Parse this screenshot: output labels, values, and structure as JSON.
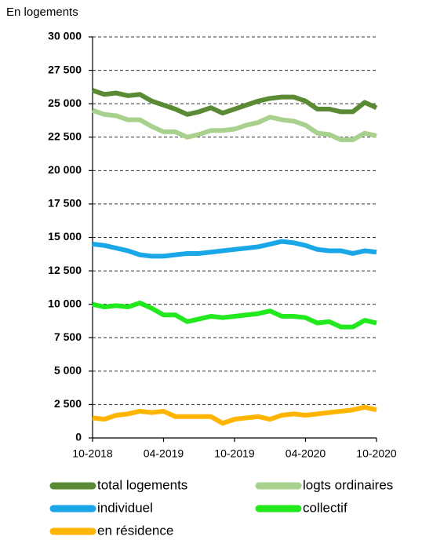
{
  "chart_data": {
    "type": "line",
    "y_axis_label": "En logements",
    "categories": [
      "10-2018",
      null,
      null,
      null,
      null,
      null,
      "04-2019",
      null,
      null,
      null,
      null,
      null,
      "10-2019",
      null,
      null,
      null,
      null,
      null,
      "04-2020",
      null,
      null,
      null,
      null,
      null,
      "10-2020"
    ],
    "series": [
      {
        "name": "total logements",
        "color": "#5a8a34",
        "values": [
          26000,
          25700,
          25800,
          25600,
          25700,
          25200,
          24900,
          24600,
          24200,
          24400,
          24700,
          24300,
          24600,
          24900,
          25200,
          25400,
          25500,
          25500,
          25200,
          24600,
          24600,
          24400,
          24400,
          25100,
          24700
        ]
      },
      {
        "name": "logts ordinaires",
        "color": "#a9d18e",
        "values": [
          24500,
          24200,
          24100,
          23800,
          23800,
          23300,
          22900,
          22900,
          22500,
          22700,
          23000,
          23000,
          23100,
          23400,
          23600,
          24000,
          23800,
          23700,
          23400,
          22800,
          22700,
          22300,
          22300,
          22800,
          22600
        ]
      },
      {
        "name": "individuel",
        "color": "#1aa7e8",
        "values": [
          14500,
          14400,
          14200,
          14000,
          13700,
          13600,
          13600,
          13700,
          13800,
          13800,
          13900,
          14000,
          14100,
          14200,
          14300,
          14500,
          14700,
          14600,
          14400,
          14100,
          14000,
          14000,
          13800,
          14000,
          13900
        ]
      },
      {
        "name": "collectif",
        "color": "#22e81e",
        "values": [
          10000,
          9800,
          9900,
          9800,
          10100,
          9700,
          9200,
          9200,
          8700,
          8900,
          9100,
          9000,
          9100,
          9200,
          9300,
          9500,
          9100,
          9100,
          9000,
          8600,
          8700,
          8300,
          8300,
          8800,
          8600
        ]
      },
      {
        "name": "en résidence",
        "color": "#ffb400",
        "values": [
          1500,
          1400,
          1700,
          1800,
          2000,
          1900,
          2000,
          1600,
          1600,
          1600,
          1600,
          1100,
          1400,
          1500,
          1600,
          1400,
          1700,
          1800,
          1700,
          1800,
          1900,
          2000,
          2100,
          2300,
          2100
        ]
      }
    ],
    "ylim": [
      0,
      30000
    ],
    "yticks": [
      0,
      {
        "value": 2500,
        "label": "2 500"
      },
      {
        "value": 5000,
        "label": "5 000"
      },
      {
        "value": 7500,
        "label": "7 500"
      },
      {
        "value": 10000,
        "label": "10 000"
      },
      {
        "value": 12500,
        "label": "12 500"
      },
      {
        "value": 15000,
        "label": "15 000"
      },
      {
        "value": 17500,
        "label": "17 500"
      },
      {
        "value": 20000,
        "label": "20 000"
      },
      {
        "value": 22500,
        "label": "22 500"
      },
      {
        "value": 25000,
        "label": "25 000"
      },
      {
        "value": 27500,
        "label": "27 500"
      },
      {
        "value": 30000,
        "label": "30 000"
      }
    ],
    "grid": true
  }
}
